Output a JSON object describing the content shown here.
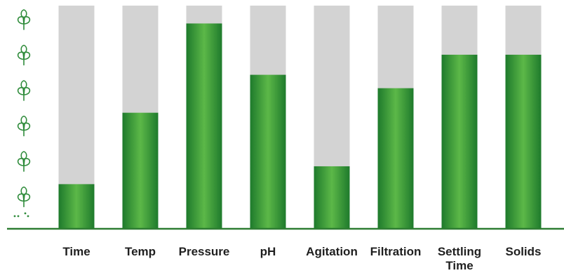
{
  "chart_data": {
    "type": "bar",
    "categories": [
      "Time",
      "Temp",
      "Pressure",
      "pH",
      "Agitation",
      "Filtration",
      "Settling Time",
      "Solids"
    ],
    "category_lines": [
      [
        "Time"
      ],
      [
        "Temp"
      ],
      [
        "Pressure"
      ],
      [
        "pH"
      ],
      [
        "Agitation"
      ],
      [
        "Filtration"
      ],
      [
        "Settling",
        "Time"
      ],
      [
        "Solids"
      ]
    ],
    "values": [
      20,
      52,
      92,
      69,
      28,
      63,
      78,
      78
    ],
    "ylim": [
      0,
      100
    ],
    "title": "",
    "xlabel": "",
    "ylabel": "",
    "grid": false,
    "legend": "none",
    "y_axis_icon": "plant-sprout-icon",
    "y_axis_icon_count": 6
  },
  "colors": {
    "bar_fill_edge": "#1e7a2c",
    "bar_fill_center": "#5cb848",
    "bar_track": "#d3d3d3",
    "baseline": "#2e7d32",
    "icon": "#2e8b3a",
    "label_text": "#1f1f1f"
  }
}
